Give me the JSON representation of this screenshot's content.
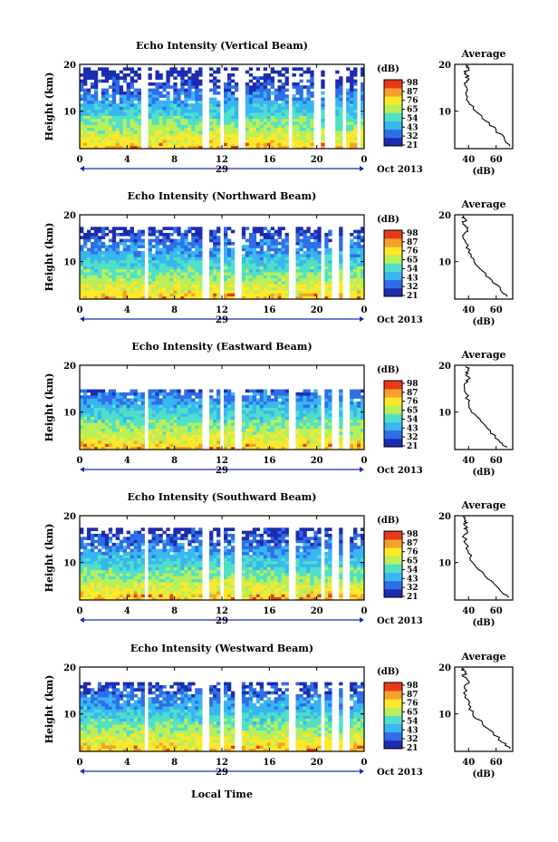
{
  "colors": {
    "colormap": [
      "#1c2cb0",
      "#2f6ee8",
      "#38b6f2",
      "#50e0c8",
      "#b8ef5a",
      "#fde82a",
      "#f5a02a",
      "#e83a1a"
    ],
    "axis": "#000000",
    "line": "#000000"
  },
  "figure": {
    "xlabel": "Local Time",
    "x_note": "Oct 2013"
  },
  "chart_data": [
    {
      "type": "heatmap",
      "title": "Echo Intensity (Vertical Beam)",
      "ylabel": "Height (km)",
      "xticks": [
        "0",
        "4",
        "8",
        "12",
        "16",
        "20",
        "0"
      ],
      "xlim": [
        0,
        24
      ],
      "yticks": [
        "20",
        "10"
      ],
      "ylim": [
        2,
        20
      ],
      "date_label": "29",
      "date_note": "Oct 2013",
      "colorbar": {
        "unit": "(dB)",
        "ticks": [
          "98",
          "87",
          "76",
          "65",
          "54",
          "43",
          "32",
          "21"
        ],
        "range": [
          21,
          98
        ]
      },
      "profile": {
        "title": "Average",
        "xlabel": "(dB)",
        "xticks": [
          "40",
          "60"
        ],
        "xlim": [
          30,
          72
        ],
        "yticks": [
          "20",
          "10"
        ],
        "ylim": [
          2,
          20
        ],
        "height": [
          2.5,
          4,
          6,
          8,
          10,
          12,
          14,
          16,
          17,
          18,
          19,
          19.8
        ],
        "intensity": [
          70,
          66,
          60,
          52,
          45,
          40,
          38,
          37,
          40,
          37,
          40,
          38
        ]
      }
    },
    {
      "type": "heatmap",
      "title": "Echo Intensity (Northward Beam)",
      "ylabel": "Height (km)",
      "xticks": [
        "0",
        "4",
        "8",
        "12",
        "16",
        "20",
        "0"
      ],
      "xlim": [
        0,
        24
      ],
      "yticks": [
        "20",
        "10"
      ],
      "ylim": [
        2,
        20
      ],
      "date_label": "29",
      "date_note": "Oct 2013",
      "colorbar": {
        "unit": "(dB)",
        "ticks": [
          "98",
          "87",
          "76",
          "65",
          "54",
          "43",
          "32",
          "21"
        ],
        "range": [
          21,
          98
        ]
      },
      "profile": {
        "title": "Average",
        "xlabel": "(dB)",
        "xticks": [
          "40",
          "60"
        ],
        "xlim": [
          30,
          72
        ],
        "yticks": [
          "20",
          "10"
        ],
        "ylim": [
          2,
          20
        ],
        "height": [
          2.5,
          4,
          6,
          8,
          10,
          12,
          14,
          16,
          17,
          18,
          19,
          19.8
        ],
        "intensity": [
          68,
          63,
          57,
          50,
          44,
          40,
          38,
          37,
          39,
          36,
          38,
          36
        ]
      }
    },
    {
      "type": "heatmap",
      "title": "Echo Intensity (Eastward Beam)",
      "ylabel": "Height (km)",
      "xticks": [
        "0",
        "4",
        "8",
        "12",
        "16",
        "20",
        "0"
      ],
      "xlim": [
        0,
        24
      ],
      "yticks": [
        "20",
        "10"
      ],
      "ylim": [
        2,
        20
      ],
      "date_label": "29",
      "date_note": "Oct 2013",
      "colorbar": {
        "unit": "(dB)",
        "ticks": [
          "98",
          "87",
          "76",
          "65",
          "54",
          "43",
          "32",
          "21"
        ],
        "range": [
          21,
          98
        ]
      },
      "profile": {
        "title": "Average",
        "xlabel": "(dB)",
        "xticks": [
          "40",
          "60"
        ],
        "xlim": [
          30,
          72
        ],
        "yticks": [
          "20",
          "10"
        ],
        "ylim": [
          2,
          20
        ],
        "height": [
          2.5,
          4,
          6,
          8,
          10,
          12,
          14,
          16,
          17,
          18,
          19,
          19.8
        ],
        "intensity": [
          68,
          62,
          56,
          49,
          42,
          40,
          38,
          37,
          40,
          38,
          40,
          38
        ]
      }
    },
    {
      "type": "heatmap",
      "title": "Echo Intensity (Southward Beam)",
      "ylabel": "Height (km)",
      "xticks": [
        "0",
        "4",
        "8",
        "12",
        "16",
        "20",
        "0"
      ],
      "xlim": [
        0,
        24
      ],
      "yticks": [
        "20",
        "10"
      ],
      "ylim": [
        2,
        20
      ],
      "date_label": "29",
      "date_note": "Oct 2013",
      "colorbar": {
        "unit": "(dB)",
        "ticks": [
          "98",
          "87",
          "76",
          "65",
          "54",
          "43",
          "32",
          "21"
        ],
        "range": [
          21,
          98
        ]
      },
      "profile": {
        "title": "Average",
        "xlabel": "(dB)",
        "xticks": [
          "40",
          "60"
        ],
        "xlim": [
          30,
          72
        ],
        "yticks": [
          "20",
          "10"
        ],
        "ylim": [
          2,
          20
        ],
        "height": [
          2.5,
          4,
          6,
          8,
          10,
          12,
          14,
          16,
          17,
          18,
          19,
          19.8
        ],
        "intensity": [
          69,
          63,
          57,
          50,
          43,
          40,
          38,
          37,
          39,
          37,
          38,
          36
        ]
      }
    },
    {
      "type": "heatmap",
      "title": "Echo Intensity (Westward Beam)",
      "ylabel": "Height (km)",
      "xticks": [
        "0",
        "4",
        "8",
        "12",
        "16",
        "20",
        "0"
      ],
      "xlim": [
        0,
        24
      ],
      "yticks": [
        "20",
        "10"
      ],
      "ylim": [
        2,
        20
      ],
      "date_label": "29",
      "date_note": "Oct 2013",
      "colorbar": {
        "unit": "(dB)",
        "ticks": [
          "98",
          "87",
          "76",
          "65",
          "54",
          "43",
          "32",
          "21"
        ],
        "range": [
          21,
          98
        ]
      },
      "profile": {
        "title": "Average",
        "xlabel": "(dB)",
        "xticks": [
          "40",
          "60"
        ],
        "xlim": [
          30,
          72
        ],
        "yticks": [
          "20",
          "10"
        ],
        "ylim": [
          2,
          20
        ],
        "height": [
          2.5,
          4,
          6,
          8,
          10,
          12,
          14,
          16,
          17,
          18,
          19,
          19.8
        ],
        "intensity": [
          70,
          64,
          58,
          50,
          43,
          40,
          38,
          37,
          40,
          36,
          38,
          35
        ]
      }
    }
  ]
}
